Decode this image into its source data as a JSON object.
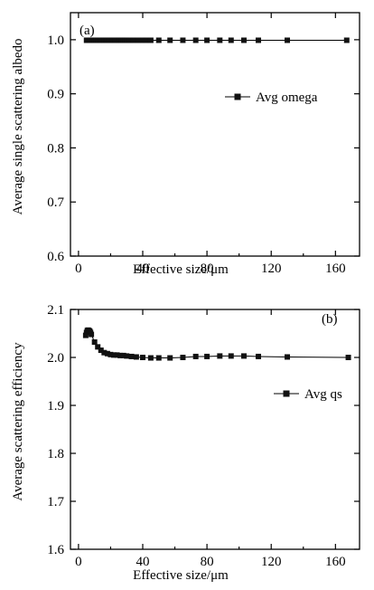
{
  "chart_data": [
    {
      "type": "line",
      "panel_label": "(a)",
      "xlabel": "Effective size/μm",
      "ylabel": "Average single scattering albedo",
      "xlim": [
        -5,
        175
      ],
      "ylim": [
        0.6,
        1.05
      ],
      "xticks": [
        "0",
        "40",
        "80",
        "120",
        "160"
      ],
      "yticks": [
        "0.6",
        "0.7",
        "0.8",
        "0.9",
        "1.0"
      ],
      "legend_position": "right-middle",
      "series": [
        {
          "name": "Avg omega",
          "color": "#000000",
          "marker": "square",
          "x": [
            5,
            6,
            7,
            8,
            9,
            10,
            11,
            12,
            13,
            14,
            15,
            16,
            17,
            18,
            19,
            20,
            21,
            22,
            23,
            24,
            25,
            26,
            27,
            28,
            29,
            30,
            32,
            34,
            37,
            40,
            42,
            45,
            50,
            57,
            65,
            73,
            80,
            88,
            95,
            103,
            112,
            130,
            167
          ],
          "y": [
            0.999,
            0.999,
            0.999,
            0.999,
            0.999,
            0.999,
            0.999,
            0.999,
            0.999,
            0.999,
            0.999,
            0.999,
            0.999,
            0.999,
            0.999,
            0.999,
            0.999,
            0.999,
            0.999,
            0.999,
            0.999,
            0.999,
            0.999,
            0.999,
            0.999,
            0.999,
            0.999,
            0.999,
            0.999,
            0.999,
            0.999,
            0.999,
            0.999,
            0.999,
            0.999,
            0.999,
            0.999,
            0.999,
            0.999,
            0.999,
            0.999,
            0.999,
            0.999
          ]
        }
      ]
    },
    {
      "type": "line",
      "panel_label": "(b)",
      "xlabel": "Effective size/μm",
      "ylabel": "Average scattering efficiency",
      "xlim": [
        -5,
        175
      ],
      "ylim": [
        1.6,
        2.1
      ],
      "xticks": [
        "0",
        "40",
        "80",
        "120",
        "160"
      ],
      "yticks": [
        "1.6",
        "1.7",
        "1.8",
        "1.9",
        "2.0",
        "2.1"
      ],
      "legend_position": "right-middle",
      "series": [
        {
          "name": "Avg qs",
          "color": "#000000",
          "marker": "square",
          "x": [
            4.5,
            5,
            5.5,
            6,
            6.5,
            7,
            7.5,
            8,
            10,
            12,
            14,
            16,
            18,
            20,
            22,
            24,
            26,
            28,
            30,
            33,
            36,
            40,
            45,
            50,
            57,
            65,
            73,
            80,
            88,
            95,
            103,
            112,
            130,
            168
          ],
          "y": [
            2.046,
            2.052,
            2.056,
            2.057,
            2.056,
            2.055,
            2.052,
            2.048,
            2.032,
            2.022,
            2.015,
            2.01,
            2.008,
            2.006,
            2.005,
            2.005,
            2.004,
            2.004,
            2.003,
            2.002,
            2.001,
            2.0,
            1.999,
            1.999,
            1.999,
            2.0,
            2.002,
            2.002,
            2.003,
            2.003,
            2.003,
            2.002,
            2.001,
            2.0
          ]
        }
      ]
    }
  ]
}
